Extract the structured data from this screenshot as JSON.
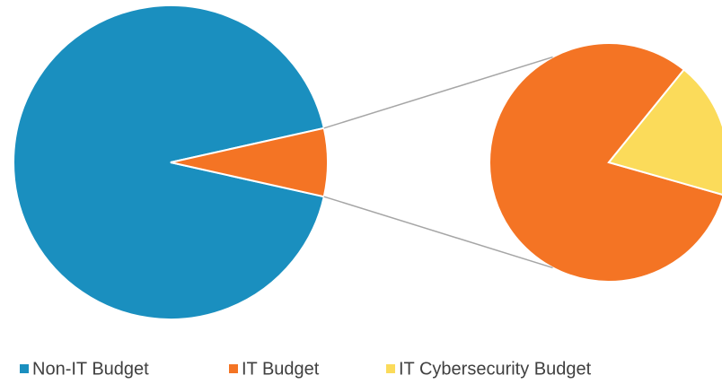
{
  "chart_data": {
    "type": "pie",
    "categories": [
      "Non-IT Budget",
      "IT Budget",
      "IT Cybersecurity Budget"
    ],
    "values": [
      93,
      5.7,
      1.3
    ],
    "colors": [
      "#1a8fbf",
      "#f47424",
      "#fbdb5a"
    ],
    "legend": "bottom"
  }
}
